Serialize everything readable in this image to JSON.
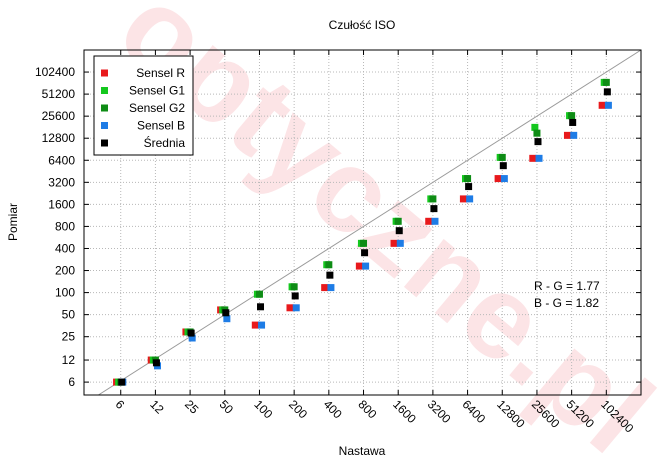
{
  "chart_data": {
    "type": "scatter",
    "title": "Czułość ISO",
    "xlabel": "Nastawa",
    "ylabel": "Pomiar",
    "scale": "log2",
    "grid": true,
    "legend_position": "top-left",
    "categories": [
      "6",
      "12",
      "25",
      "50",
      "100",
      "200",
      "400",
      "800",
      "1600",
      "3200",
      "6400",
      "12800",
      "25600",
      "51200",
      "102400"
    ],
    "y_ticks": [
      6,
      12,
      25,
      50,
      100,
      200,
      400,
      800,
      1600,
      3200,
      6400,
      12800,
      25600,
      51200,
      102400
    ],
    "y_tick_labels": [
      "6",
      "12",
      "25",
      "50",
      "100",
      "200",
      "400",
      "800",
      "1600",
      "3200",
      "6400",
      "12800",
      "25600",
      "51200",
      "102400"
    ],
    "x_range": [
      3,
      204800
    ],
    "y_range": [
      4,
      204800
    ],
    "reference_line": "y = x",
    "series": [
      {
        "name": "Sensel R",
        "color": "#e8191c",
        "offset": -0.12,
        "values": [
          6,
          12,
          29,
          58,
          36,
          62,
          117,
          230,
          470,
          940,
          1900,
          3600,
          6800,
          14000,
          36000
        ]
      },
      {
        "name": "Sensel G1",
        "color": "#14c81e",
        "offset": -0.06,
        "values": [
          6,
          12,
          29,
          58,
          95,
          120,
          240,
          470,
          940,
          1900,
          3600,
          7000,
          18000,
          26000,
          74000
        ]
      },
      {
        "name": "Sensel G2",
        "color": "#0e8c15",
        "offset": 0.0,
        "values": [
          6,
          12,
          29,
          58,
          95,
          120,
          240,
          470,
          940,
          1900,
          3600,
          7000,
          15000,
          26000,
          74000
        ]
      },
      {
        "name": "Sensel B",
        "color": "#1e7ce6",
        "offset": 0.06,
        "values": [
          6,
          10,
          24,
          44,
          36,
          62,
          117,
          230,
          470,
          940,
          1900,
          3600,
          6800,
          14000,
          36000
        ]
      },
      {
        "name": "Średnia",
        "color": "#000000",
        "offset": 0.03,
        "values": [
          6,
          11,
          28,
          53,
          64,
          90,
          173,
          350,
          700,
          1400,
          2800,
          5400,
          11500,
          21000,
          55000
        ]
      }
    ],
    "annotations": [
      "R - G = 1.77",
      "B - G = 1.82"
    ]
  }
}
